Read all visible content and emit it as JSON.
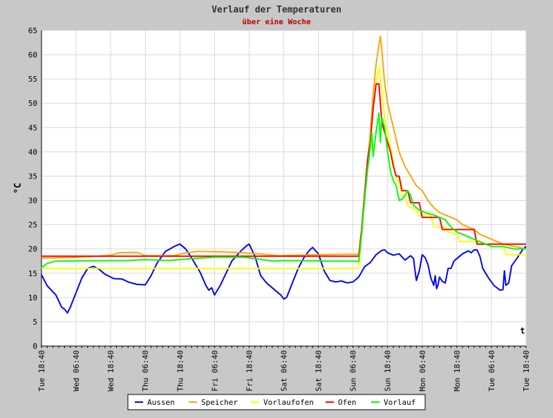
{
  "chart_data": {
    "type": "line",
    "title": "Verlauf der Temperaturen",
    "subtitle": "über eine Woche",
    "xlabel": "t",
    "ylabel": "°C",
    "ylim": [
      0,
      65
    ],
    "yticks": [
      0,
      5,
      10,
      15,
      20,
      25,
      30,
      35,
      40,
      45,
      50,
      55,
      60,
      65
    ],
    "xlim": [
      0,
      168
    ],
    "x_unit": "hours since Tue 18:40",
    "xticks": [
      {
        "x": 0,
        "label": "Tue 18:40"
      },
      {
        "x": 12,
        "label": "Wed 06:40"
      },
      {
        "x": 24,
        "label": "Wed 18:40"
      },
      {
        "x": 36,
        "label": "Thu 06:40"
      },
      {
        "x": 48,
        "label": "Thu 18:40"
      },
      {
        "x": 60,
        "label": "Fri 06:40"
      },
      {
        "x": 72,
        "label": "Fri 18:40"
      },
      {
        "x": 84,
        "label": "Sat 06:40"
      },
      {
        "x": 96,
        "label": "Sat 18:40"
      },
      {
        "x": 108,
        "label": "Sun 06:40"
      },
      {
        "x": 120,
        "label": "Sun 18:40"
      },
      {
        "x": 132,
        "label": "Mon 06:40"
      },
      {
        "x": 144,
        "label": "Mon 18:40"
      },
      {
        "x": 156,
        "label": "Tue 06:40"
      },
      {
        "x": 168,
        "label": "Tue 18:40"
      }
    ],
    "grid": true,
    "legend_position": "bottom",
    "series": [
      {
        "name": "Aussen",
        "color": "#0000ff",
        "points": [
          [
            0,
            14.7
          ],
          [
            2,
            12.4
          ],
          [
            5,
            10.5
          ],
          [
            7,
            8
          ],
          [
            8,
            7.6
          ],
          [
            9,
            6.8
          ],
          [
            10,
            8
          ],
          [
            12,
            11
          ],
          [
            14,
            14
          ],
          [
            16,
            16
          ],
          [
            18,
            16.4
          ],
          [
            20,
            15.8
          ],
          [
            22,
            14.8
          ],
          [
            25,
            13.9
          ],
          [
            28,
            13.8
          ],
          [
            30,
            13.2
          ],
          [
            33,
            12.7
          ],
          [
            36,
            12.6
          ],
          [
            38,
            14.5
          ],
          [
            40,
            17
          ],
          [
            43,
            19.5
          ],
          [
            46,
            20.5
          ],
          [
            48,
            21
          ],
          [
            50,
            20
          ],
          [
            52,
            18.2
          ],
          [
            55,
            15.2
          ],
          [
            57,
            12.5
          ],
          [
            58,
            11.5
          ],
          [
            59,
            12
          ],
          [
            60,
            10.5
          ],
          [
            62,
            12.5
          ],
          [
            64,
            15
          ],
          [
            66,
            17.5
          ],
          [
            69,
            19.5
          ],
          [
            71,
            20.6
          ],
          [
            72,
            21
          ],
          [
            74,
            18.5
          ],
          [
            76,
            14.5
          ],
          [
            78,
            13
          ],
          [
            80,
            12
          ],
          [
            83,
            10.5
          ],
          [
            84,
            9.7
          ],
          [
            85,
            10
          ],
          [
            87,
            13
          ],
          [
            89,
            16
          ],
          [
            91,
            18.2
          ],
          [
            93,
            19.8
          ],
          [
            94,
            20.3
          ],
          [
            96,
            19
          ],
          [
            98,
            15.5
          ],
          [
            100,
            13.5
          ],
          [
            102,
            13.2
          ],
          [
            104,
            13.4
          ],
          [
            106,
            13
          ],
          [
            108,
            13.2
          ],
          [
            110,
            14.2
          ],
          [
            112,
            16.3
          ],
          [
            114,
            17.2
          ],
          [
            116,
            18.8
          ],
          [
            118,
            19.7
          ],
          [
            119,
            19.8
          ],
          [
            120,
            19.2
          ],
          [
            122,
            18.7
          ],
          [
            124,
            19
          ],
          [
            126,
            17.7
          ],
          [
            128,
            18.6
          ],
          [
            129,
            18
          ],
          [
            129.5,
            15.5
          ],
          [
            130,
            13.5
          ],
          [
            131,
            15.5
          ],
          [
            132,
            18.8
          ],
          [
            133,
            18.2
          ],
          [
            134,
            16.8
          ],
          [
            135,
            14
          ],
          [
            136,
            12.5
          ],
          [
            136.5,
            14.5
          ],
          [
            137,
            11.8
          ],
          [
            137.5,
            12.6
          ],
          [
            138,
            14.2
          ],
          [
            139,
            13.3
          ],
          [
            140,
            13
          ],
          [
            141,
            16
          ],
          [
            142,
            16
          ],
          [
            143,
            17.5
          ],
          [
            146,
            19
          ],
          [
            148,
            19.6
          ],
          [
            149,
            19.2
          ],
          [
            150,
            19.8
          ],
          [
            151,
            19.8
          ],
          [
            152,
            18.5
          ],
          [
            153,
            16
          ],
          [
            155,
            14
          ],
          [
            157,
            12.4
          ],
          [
            159,
            11.5
          ],
          [
            160,
            11.6
          ],
          [
            160.5,
            15.5
          ],
          [
            161,
            12.5
          ],
          [
            162,
            13
          ],
          [
            163,
            16.5
          ],
          [
            165,
            18.2
          ],
          [
            167,
            20
          ],
          [
            168,
            20.5
          ]
        ]
      },
      {
        "name": "Speicher",
        "color": "#ffa500",
        "points": [
          [
            0,
            18.1
          ],
          [
            10,
            18.2
          ],
          [
            20,
            18.5
          ],
          [
            24,
            18.7
          ],
          [
            27,
            19.2
          ],
          [
            33,
            19.3
          ],
          [
            36,
            18.6
          ],
          [
            46,
            18.6
          ],
          [
            50,
            19.2
          ],
          [
            54,
            19.5
          ],
          [
            62,
            19.4
          ],
          [
            70,
            19.2
          ],
          [
            75,
            19
          ],
          [
            82,
            18.6
          ],
          [
            95,
            18.8
          ],
          [
            105,
            18.9
          ],
          [
            110,
            18.9
          ],
          [
            111,
            24
          ],
          [
            112,
            31
          ],
          [
            113,
            38
          ],
          [
            114,
            44
          ],
          [
            115,
            52
          ],
          [
            116,
            58
          ],
          [
            117,
            62
          ],
          [
            117.5,
            63.8
          ],
          [
            118,
            61
          ],
          [
            119,
            54
          ],
          [
            120,
            50
          ],
          [
            122,
            45
          ],
          [
            124,
            40
          ],
          [
            126,
            37
          ],
          [
            128,
            35
          ],
          [
            130,
            33
          ],
          [
            132,
            32
          ],
          [
            134,
            30
          ],
          [
            136,
            28.5
          ],
          [
            138,
            27.5
          ],
          [
            140,
            27
          ],
          [
            142,
            26.5
          ],
          [
            144,
            26
          ],
          [
            146,
            25
          ],
          [
            148,
            24.5
          ],
          [
            150,
            24
          ],
          [
            152,
            23
          ],
          [
            154,
            22.5
          ],
          [
            156,
            22
          ],
          [
            158,
            21.5
          ],
          [
            160,
            21
          ],
          [
            164,
            20.5
          ],
          [
            168,
            20
          ]
        ]
      },
      {
        "name": "Vorlaufofen",
        "color": "#ffff00",
        "points": [
          [
            0,
            16
          ],
          [
            110,
            16
          ],
          [
            111,
            23
          ],
          [
            112,
            30
          ],
          [
            113,
            37
          ],
          [
            114,
            43
          ],
          [
            115,
            49
          ],
          [
            116,
            54
          ],
          [
            117,
            57.5
          ],
          [
            118,
            53
          ],
          [
            119,
            47
          ],
          [
            120,
            44
          ],
          [
            121,
            41
          ],
          [
            122,
            38
          ],
          [
            123,
            34
          ],
          [
            124,
            34
          ],
          [
            125,
            31
          ],
          [
            126,
            31
          ],
          [
            127,
            29
          ],
          [
            128,
            28.5
          ],
          [
            130,
            28
          ],
          [
            131,
            27
          ],
          [
            135,
            27
          ],
          [
            136,
            24.5
          ],
          [
            140,
            24.5
          ],
          [
            141,
            23.5
          ],
          [
            144,
            23
          ],
          [
            145,
            21.5
          ],
          [
            151,
            21.5
          ],
          [
            152,
            21
          ],
          [
            160,
            21
          ],
          [
            161,
            18.8
          ],
          [
            168,
            18.8
          ]
        ]
      },
      {
        "name": "Ofen",
        "color": "#ff0000",
        "points": [
          [
            0,
            18.5
          ],
          [
            110,
            18.5
          ],
          [
            111,
            24
          ],
          [
            112,
            31
          ],
          [
            113,
            38
          ],
          [
            114,
            42
          ],
          [
            115,
            49
          ],
          [
            116,
            54
          ],
          [
            117,
            54
          ],
          [
            118,
            46
          ],
          [
            119,
            44
          ],
          [
            120,
            42
          ],
          [
            121,
            40
          ],
          [
            122,
            37
          ],
          [
            123,
            35
          ],
          [
            124,
            35
          ],
          [
            125,
            32
          ],
          [
            127,
            32
          ],
          [
            128,
            29.5
          ],
          [
            131,
            29.5
          ],
          [
            132,
            26.5
          ],
          [
            138,
            26.5
          ],
          [
            139,
            24
          ],
          [
            150,
            24
          ],
          [
            151,
            21
          ],
          [
            168,
            21
          ]
        ]
      },
      {
        "name": "Vorlauf",
        "color": "#00ff00",
        "points": [
          [
            0,
            16.2
          ],
          [
            2,
            17
          ],
          [
            5,
            17.5
          ],
          [
            30,
            17.6
          ],
          [
            36,
            17.8
          ],
          [
            44,
            17.6
          ],
          [
            52,
            18
          ],
          [
            60,
            18.3
          ],
          [
            70,
            18.3
          ],
          [
            74,
            18
          ],
          [
            80,
            17.5
          ],
          [
            85,
            17.6
          ],
          [
            100,
            17.5
          ],
          [
            108,
            17.5
          ],
          [
            110,
            17.4
          ],
          [
            111,
            23
          ],
          [
            112,
            30
          ],
          [
            113,
            36
          ],
          [
            114,
            41
          ],
          [
            114.5,
            44
          ],
          [
            115,
            39
          ],
          [
            116,
            44
          ],
          [
            117,
            48
          ],
          [
            117.5,
            42
          ],
          [
            118,
            47
          ],
          [
            119,
            45
          ],
          [
            120,
            40
          ],
          [
            121,
            36
          ],
          [
            122,
            34
          ],
          [
            123,
            33
          ],
          [
            124,
            30
          ],
          [
            125,
            30.2
          ],
          [
            126,
            31
          ],
          [
            127,
            32
          ],
          [
            128,
            31
          ],
          [
            129,
            29
          ],
          [
            131,
            28
          ],
          [
            133,
            27.5
          ],
          [
            136,
            27
          ],
          [
            140,
            26
          ],
          [
            142,
            24.5
          ],
          [
            144,
            23.5
          ],
          [
            146,
            23
          ],
          [
            148,
            22.5
          ],
          [
            150,
            22
          ],
          [
            152,
            21.5
          ],
          [
            154,
            21
          ],
          [
            156,
            20.5
          ],
          [
            160,
            20.5
          ],
          [
            164,
            20
          ],
          [
            168,
            20
          ]
        ]
      }
    ]
  }
}
